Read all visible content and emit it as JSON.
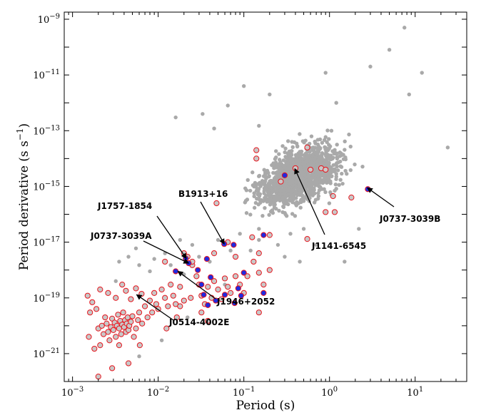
{
  "chart_data": {
    "type": "scatter",
    "xlabel": "Period (s)",
    "ylabel": "Period derivative (s s",
    "ylabel_sup": "−1",
    "ylabel_close": ")",
    "xscale": "log",
    "yscale": "log",
    "xlim": [
      0.0008,
      40
    ],
    "ylim": [
      1e-22,
      1.8e-09
    ],
    "grid": false,
    "x_ticks": [
      {
        "value": 0.001,
        "base": "10",
        "exp": "−3"
      },
      {
        "value": 0.01,
        "base": "10",
        "exp": "−2"
      },
      {
        "value": 0.1,
        "base": "10",
        "exp": "−1"
      },
      {
        "value": 1,
        "base": "10",
        "exp": "0"
      },
      {
        "value": 10,
        "base": "10",
        "exp": "1"
      }
    ],
    "y_ticks": [
      {
        "value": 1e-21,
        "base": "10",
        "exp": "−21"
      },
      {
        "value": 1e-19,
        "base": "10",
        "exp": "−19"
      },
      {
        "value": 1e-17,
        "base": "10",
        "exp": "−17"
      },
      {
        "value": 1e-15,
        "base": "10",
        "exp": "−15"
      },
      {
        "value": 1e-13,
        "base": "10",
        "exp": "−13"
      },
      {
        "value": 1e-11,
        "base": "10",
        "exp": "−11"
      },
      {
        "value": 1e-09,
        "base": "10",
        "exp": "−9"
      }
    ],
    "colors": {
      "background_pulsars": "#a9a9a9",
      "circle_edge": "#e8141c",
      "circle_fill": "#c8c8c8",
      "double_ns_fill": "#1f2be0"
    },
    "series": [
      {
        "marker": "gray-dot",
        "points": [
          [
            0.0032,
            4e-19
          ],
          [
            0.006,
            1.5e-18
          ],
          [
            0.0035,
            2e-18
          ],
          [
            0.0045,
            3e-18
          ],
          [
            0.009,
            2.5e-18
          ],
          [
            0.0055,
            6e-18
          ],
          [
            0.012,
            4e-18
          ],
          [
            0.018,
            1.2e-17
          ],
          [
            0.025,
            8e-18
          ],
          [
            0.03,
            3e-18
          ],
          [
            0.02,
            7e-19
          ],
          [
            0.008,
            9e-19
          ],
          [
            0.014,
            1.5e-18
          ],
          [
            0.04,
            2e-18
          ],
          [
            0.07,
            5e-18
          ],
          [
            0.05,
            1.2e-17
          ],
          [
            0.09,
            2e-17
          ],
          [
            0.12,
            5e-18
          ],
          [
            0.15,
            1.2e-17
          ],
          [
            0.2,
            2e-17
          ],
          [
            0.25,
            8e-18
          ],
          [
            0.3,
            3e-18
          ],
          [
            0.35,
            2e-17
          ],
          [
            0.5,
            3e-17
          ],
          [
            0.7,
            8e-18
          ],
          [
            0.45,
            2e-18
          ],
          [
            1.5,
            2e-18
          ],
          [
            2.2,
            3e-17
          ],
          [
            0.011,
            3e-21
          ],
          [
            0.006,
            8e-22
          ],
          [
            0.022,
            2e-20
          ],
          [
            0.035,
            6e-20
          ],
          [
            0.06,
            3e-19
          ],
          [
            0.1,
            8e-19
          ],
          [
            0.15,
            3e-17
          ],
          [
            7.5,
            5e-10
          ],
          [
            5,
            8e-11
          ],
          [
            12,
            1.2e-11
          ],
          [
            3,
            2e-11
          ],
          [
            8.5,
            2e-12
          ],
          [
            0.15,
            1.5e-13
          ],
          [
            0.045,
            1.2e-13
          ],
          [
            0.1,
            4e-12
          ],
          [
            0.2,
            2e-12
          ],
          [
            0.033,
            4e-13
          ],
          [
            0.065,
            8e-13
          ],
          [
            1.2,
            1e-12
          ],
          [
            24,
            2.5e-14
          ],
          [
            0.016,
            3e-13
          ],
          [
            0.9,
            1.2e-11
          ]
        ]
      },
      {
        "marker": "red-circle",
        "points": [
          [
            0.00155,
            4e-21
          ],
          [
            0.0018,
            1.5e-21
          ],
          [
            0.0016,
            3e-20
          ],
          [
            0.0019,
            4e-20
          ],
          [
            0.002,
            8e-21
          ],
          [
            0.0021,
            2e-21
          ],
          [
            0.0022,
            1e-20
          ],
          [
            0.0023,
            5e-21
          ],
          [
            0.0024,
            2e-20
          ],
          [
            0.0025,
            1.2e-20
          ],
          [
            0.0026,
            6e-21
          ],
          [
            0.0027,
            3e-21
          ],
          [
            0.0028,
            9e-21
          ],
          [
            0.0029,
            1.8e-20
          ],
          [
            0.003,
            7e-21
          ],
          [
            0.0031,
            1.3e-20
          ],
          [
            0.0032,
            4e-21
          ],
          [
            0.0033,
            1e-20
          ],
          [
            0.0034,
            2.5e-20
          ],
          [
            0.0035,
            8e-21
          ],
          [
            0.0036,
            1.5e-20
          ],
          [
            0.0037,
            5e-21
          ],
          [
            0.0038,
            1.1e-20
          ],
          [
            0.0039,
            3e-20
          ],
          [
            0.004,
            9e-21
          ],
          [
            0.0041,
            1.6e-20
          ],
          [
            0.0042,
            6e-21
          ],
          [
            0.0043,
            1.2e-20
          ],
          [
            0.0044,
            2e-20
          ],
          [
            0.0045,
            7e-21
          ],
          [
            0.0046,
            1e-20
          ],
          [
            0.0048,
            1.4e-20
          ],
          [
            0.005,
            2.2e-20
          ],
          [
            0.0052,
            4e-21
          ],
          [
            0.0055,
            8e-21
          ],
          [
            0.0058,
            1.6e-20
          ],
          [
            0.006,
            3e-20
          ],
          [
            0.0065,
            1.2e-20
          ],
          [
            0.007,
            5e-20
          ],
          [
            0.0075,
            2e-20
          ],
          [
            0.008,
            8e-20
          ],
          [
            0.0085,
            3e-20
          ],
          [
            0.009,
            1.5e-19
          ],
          [
            0.0095,
            6e-20
          ],
          [
            0.01,
            4e-20
          ],
          [
            0.011,
            2e-19
          ],
          [
            0.012,
            1e-19
          ],
          [
            0.013,
            5e-20
          ],
          [
            0.014,
            3e-19
          ],
          [
            0.015,
            1.2e-19
          ],
          [
            0.016,
            6e-20
          ],
          [
            0.018,
            2.5e-19
          ],
          [
            0.02,
            8e-20
          ],
          [
            0.0165,
            2e-20
          ],
          [
            0.0125,
            8e-21
          ],
          [
            0.0015,
            1.2e-19
          ],
          [
            0.0017,
            7e-20
          ],
          [
            0.0021,
            2e-19
          ],
          [
            0.0026,
            1.5e-19
          ],
          [
            0.0032,
            1e-19
          ],
          [
            0.0038,
            3e-19
          ],
          [
            0.0042,
            1.8e-19
          ],
          [
            0.0048,
            9e-20
          ],
          [
            0.0055,
            2.2e-19
          ],
          [
            0.0064,
            1.4e-19
          ],
          [
            0.0029,
            3e-22
          ],
          [
            0.002,
            1.5e-22
          ],
          [
            0.0045,
            4.5e-22
          ],
          [
            0.0061,
            2e-21
          ],
          [
            0.0035,
            2e-21
          ],
          [
            0.022,
            3e-18
          ],
          [
            0.025,
            1.5e-18
          ],
          [
            0.028,
            6e-19
          ],
          [
            0.03,
            3e-19
          ],
          [
            0.032,
            1.2e-19
          ],
          [
            0.035,
            6e-20
          ],
          [
            0.038,
            2.5e-19
          ],
          [
            0.042,
            1e-19
          ],
          [
            0.045,
            4e-19
          ],
          [
            0.05,
            2e-19
          ],
          [
            0.055,
            9e-20
          ],
          [
            0.06,
            5e-19
          ],
          [
            0.065,
            2.5e-19
          ],
          [
            0.07,
            1.5e-19
          ],
          [
            0.08,
            6e-19
          ],
          [
            0.09,
            3e-19
          ],
          [
            0.1,
            1.5e-19
          ],
          [
            0.11,
            6e-19
          ],
          [
            0.13,
            2e-18
          ],
          [
            0.15,
            8e-19
          ],
          [
            0.17,
            3e-19
          ],
          [
            0.2,
            1e-18
          ],
          [
            0.025,
            2e-18
          ],
          [
            0.02,
            4e-18
          ],
          [
            0.012,
            2e-18
          ],
          [
            0.045,
            4e-18
          ],
          [
            0.065,
            1e-17
          ],
          [
            0.08,
            3e-18
          ],
          [
            0.125,
            1.5e-17
          ],
          [
            0.15,
            4e-18
          ],
          [
            0.048,
            2.5e-16
          ],
          [
            0.14,
            1e-14
          ],
          [
            0.14,
            2e-14
          ],
          [
            0.27,
            1.5e-15
          ],
          [
            0.4,
            4.5e-15
          ],
          [
            0.55,
            2.5e-14
          ],
          [
            0.6,
            4e-15
          ],
          [
            0.8,
            4.5e-15
          ],
          [
            0.9,
            4e-15
          ],
          [
            1.1,
            4.5e-16
          ],
          [
            1.8,
            4e-16
          ],
          [
            0.9,
            1.2e-16
          ],
          [
            1.15,
            1.2e-16
          ],
          [
            0.55,
            1.3e-17
          ],
          [
            0.2,
            1.8e-17
          ],
          [
            0.15,
            3e-20
          ],
          [
            0.032,
            3e-20
          ],
          [
            0.038,
            1.5e-20
          ],
          [
            0.018,
            5e-20
          ],
          [
            0.024,
            1e-19
          ]
        ]
      },
      {
        "marker": "blue-dot",
        "points": [
          [
            0.3,
            2.5e-15
          ],
          [
            2.8,
            8e-16
          ],
          [
            0.17,
            1.8e-17
          ],
          [
            0.059,
            8.6e-18
          ],
          [
            0.076,
            8e-18
          ],
          [
            0.0227,
            1.76e-18
          ],
          [
            0.021,
            2.6e-18
          ],
          [
            0.016,
            9e-19
          ],
          [
            0.029,
            1e-18
          ],
          [
            0.037,
            2.5e-18
          ],
          [
            0.041,
            5.5e-19
          ],
          [
            0.032,
            3e-19
          ],
          [
            0.034,
            1.3e-19
          ],
          [
            0.047,
            8e-20
          ],
          [
            0.06,
            1.3e-19
          ],
          [
            0.078,
            6.5e-20
          ],
          [
            0.086,
            2.2e-19
          ],
          [
            0.093,
            1.2e-19
          ],
          [
            0.1,
            8e-19
          ],
          [
            0.17,
            1.5e-19
          ],
          [
            0.038,
            5.5e-20
          ]
        ]
      }
    ],
    "annotations": [
      {
        "text": "B1913+16",
        "x": 0.059,
        "y": 8.6e-18
      },
      {
        "text": "J1757-1854",
        "x": 0.0213,
        "y": 2.6e-18
      },
      {
        "text": "J0737-3039A",
        "x": 0.0227,
        "y": 1.76e-18
      },
      {
        "text": "J1946+2052",
        "x": 0.017,
        "y": 9e-19
      },
      {
        "text": "J0514-4002E",
        "x": 0.0056,
        "y": 1.3e-19
      },
      {
        "text": "J1141-6545",
        "x": 0.394,
        "y": 4.3e-15
      },
      {
        "text": "J0737-3039B",
        "x": 2.77,
        "y": 8.9e-16
      }
    ]
  }
}
